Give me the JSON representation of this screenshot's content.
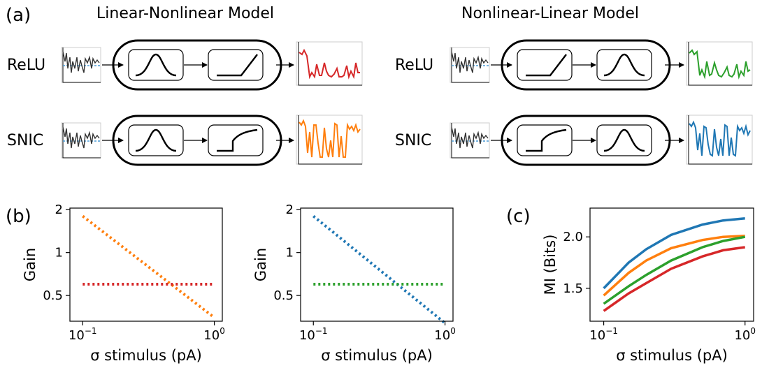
{
  "panel_labels": {
    "a": "(a)",
    "b": "(b)",
    "c": "(c)"
  },
  "models": {
    "ln_title": "Linear-Nonlinear Model",
    "nl_title": "Nonlinear-Linear Model",
    "relu": "ReLU",
    "snic": "SNIC"
  },
  "colors": {
    "ln_relu": "#d62728",
    "ln_snic": "#ff7f0e",
    "nl_relu": "#2ca02c",
    "nl_snic": "#1f77b4",
    "stimulus": "#333333",
    "baseline": "#4a9bd6"
  },
  "icons": {
    "stimulus_trace": "noisy-stimulus-icon",
    "gaussian_filter": "gaussian-filter-icon",
    "relu_nonlinearity": "relu-curve-icon",
    "snic_nonlinearity": "snic-curve-icon",
    "output_trace": "output-rate-icon"
  },
  "chart_data": [
    {
      "id": "b-left",
      "type": "line",
      "xlabel": "σ stimulus (pA)",
      "ylabel": "Gain",
      "x_scale": "log",
      "y_scale": "log",
      "xlim": [
        0.08,
        1.15
      ],
      "ylim": [
        0.33,
        2.05
      ],
      "xticks": [
        {
          "value": 0.1,
          "base": "10",
          "exp": "−1"
        },
        {
          "value": 1,
          "base": "10",
          "exp": "0"
        }
      ],
      "yticks": [
        {
          "value": 2,
          "label": "2"
        },
        {
          "value": 1,
          "label": "1"
        },
        {
          "value": 0.5,
          "label": "0.5"
        }
      ],
      "grid": false,
      "series": [
        {
          "color": "#ff7f0e",
          "style": "dotted",
          "x": [
            0.1,
            1.0
          ],
          "y": [
            1.8,
            0.35
          ]
        },
        {
          "color": "#d62728",
          "style": "dotted",
          "x": [
            0.1,
            1.0
          ],
          "y": [
            0.6,
            0.6
          ]
        }
      ]
    },
    {
      "id": "b-right",
      "type": "line",
      "xlabel": "σ stimulus (pA)",
      "ylabel": "Gain",
      "x_scale": "log",
      "y_scale": "log",
      "xlim": [
        0.08,
        1.15
      ],
      "ylim": [
        0.33,
        2.05
      ],
      "xticks": [
        {
          "value": 0.1,
          "base": "10",
          "exp": "−1"
        },
        {
          "value": 1,
          "base": "10",
          "exp": "0"
        }
      ],
      "yticks": [
        {
          "value": 2,
          "label": "2"
        },
        {
          "value": 1,
          "label": "1"
        },
        {
          "value": 0.5,
          "label": "0.5"
        }
      ],
      "grid": false,
      "series": [
        {
          "color": "#1f77b4",
          "style": "dotted",
          "x": [
            0.1,
            1.0
          ],
          "y": [
            1.8,
            0.32
          ]
        },
        {
          "color": "#2ca02c",
          "style": "dotted",
          "x": [
            0.1,
            1.0
          ],
          "y": [
            0.6,
            0.6
          ]
        }
      ]
    },
    {
      "id": "c",
      "type": "line",
      "xlabel": "σ stimulus (pA)",
      "ylabel": "MI (Bits)",
      "x_scale": "log",
      "xlim": [
        0.08,
        1.15
      ],
      "ylim": [
        1.18,
        2.28
      ],
      "xticks": [
        {
          "value": 0.1,
          "base": "10",
          "exp": "−1"
        },
        {
          "value": 1,
          "base": "10",
          "exp": "0"
        }
      ],
      "yticks": [
        {
          "value": 2.0,
          "label": "2.0"
        },
        {
          "value": 1.5,
          "label": "1.5"
        }
      ],
      "grid": false,
      "series": [
        {
          "color": "#1f77b4",
          "style": "solid",
          "x": [
            0.1,
            0.15,
            0.2,
            0.3,
            0.5,
            0.7,
            1.0
          ],
          "y": [
            1.5,
            1.75,
            1.88,
            2.02,
            2.12,
            2.16,
            2.18
          ]
        },
        {
          "color": "#ff7f0e",
          "style": "solid",
          "x": [
            0.1,
            0.15,
            0.2,
            0.3,
            0.5,
            0.7,
            1.0
          ],
          "y": [
            1.43,
            1.65,
            1.77,
            1.89,
            1.97,
            2.0,
            2.01
          ]
        },
        {
          "color": "#2ca02c",
          "style": "solid",
          "x": [
            0.1,
            0.15,
            0.2,
            0.3,
            0.5,
            0.7,
            1.0
          ],
          "y": [
            1.35,
            1.52,
            1.63,
            1.77,
            1.9,
            1.96,
            2.0
          ]
        },
        {
          "color": "#d62728",
          "style": "solid",
          "x": [
            0.1,
            0.15,
            0.2,
            0.3,
            0.5,
            0.7,
            1.0
          ],
          "y": [
            1.28,
            1.45,
            1.55,
            1.69,
            1.81,
            1.87,
            1.9
          ]
        }
      ]
    }
  ]
}
